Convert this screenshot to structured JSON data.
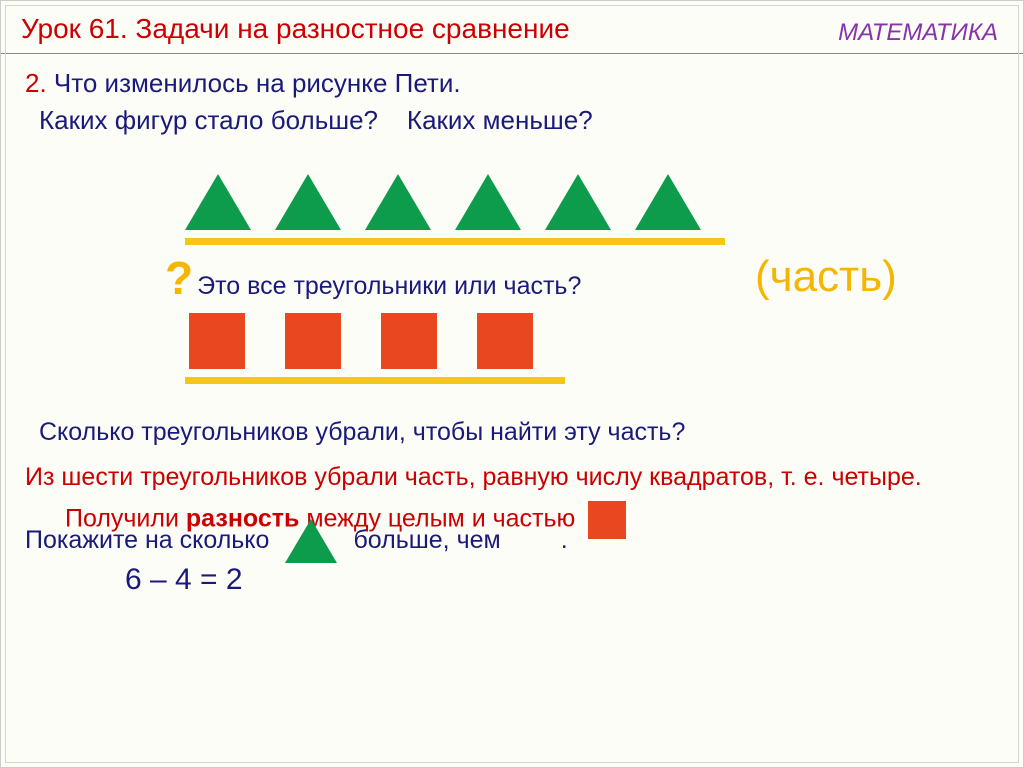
{
  "header": {
    "lesson": "Урок 61. Задачи на разностное сравнение",
    "subject": "МАТЕМАТИКА"
  },
  "task": {
    "number": "2.",
    "line1": "Что изменилось на рисунке Пети.",
    "line2a": "Каких фигур стало больше?",
    "line2b": "Каких меньше?"
  },
  "shapes": {
    "triangle_count": 6,
    "triangle_color": "#0d9b4c",
    "square_count": 4,
    "square_color": "#e8471f",
    "line_color": "#f5c518"
  },
  "question1": {
    "mark": "?",
    "text": "Это все треугольники или часть?",
    "answer_label": "(часть)"
  },
  "question2": "Сколько треугольников убрали, чтобы найти эту часть?",
  "answer": "Из шести треугольников  убрали часть, равную числу квадратов, т. е. четыре.",
  "overlap": {
    "red_a": "Получили ",
    "red_bold": "разность",
    "red_b": " между целым и частью",
    "blue_a": "Покажите на сколько",
    "blue_b": "больше, чем",
    "blue_c": "."
  },
  "equation": "6 – 4  = 2"
}
